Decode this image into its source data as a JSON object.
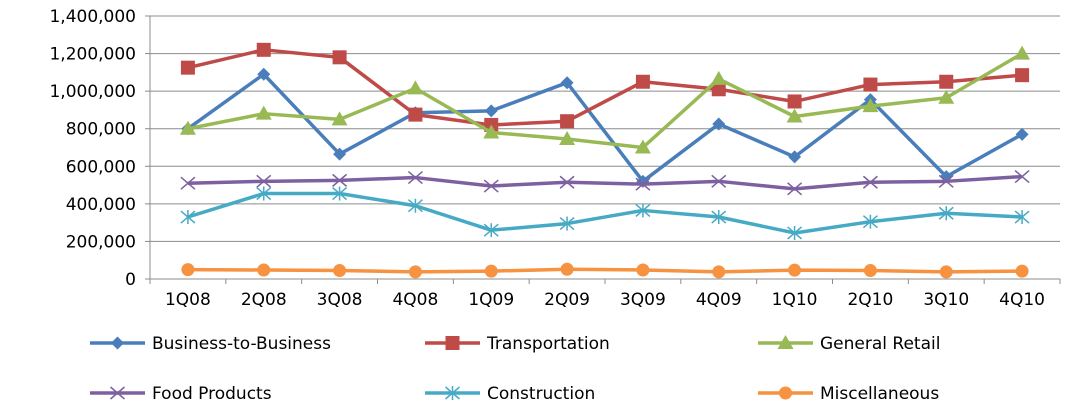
{
  "chart_data": {
    "type": "line",
    "title": "",
    "xlabel": "",
    "ylabel": "",
    "ylim": [
      0,
      1400000
    ],
    "yticks": [
      0,
      200000,
      400000,
      600000,
      800000,
      1000000,
      1200000,
      1400000
    ],
    "ytick_labels": [
      "0",
      "200,000",
      "400,000",
      "600,000",
      "800,000",
      "1,000,000",
      "1,200,000",
      "1,400,000"
    ],
    "categories": [
      "1Q08",
      "2Q08",
      "3Q08",
      "4Q08",
      "1Q09",
      "2Q09",
      "3Q09",
      "4Q09",
      "1Q10",
      "2Q10",
      "3Q10",
      "4Q10"
    ],
    "grid": "horizontal",
    "legend_position": "bottom",
    "series": [
      {
        "name": "Business-to-Business",
        "color": "#4a7ebb",
        "marker": "diamond",
        "values": [
          800000,
          1090000,
          665000,
          885000,
          895000,
          1045000,
          520000,
          825000,
          650000,
          955000,
          545000,
          770000
        ]
      },
      {
        "name": "Transportation",
        "color": "#be4b48",
        "marker": "square",
        "values": [
          1125000,
          1220000,
          1180000,
          875000,
          820000,
          840000,
          1050000,
          1010000,
          945000,
          1035000,
          1050000,
          1085000
        ]
      },
      {
        "name": "General Retail",
        "color": "#98b954",
        "marker": "triangle",
        "values": [
          800000,
          880000,
          850000,
          1015000,
          780000,
          745000,
          700000,
          1065000,
          865000,
          920000,
          965000,
          1200000
        ]
      },
      {
        "name": "Food Products",
        "color": "#7d60a0",
        "marker": "x",
        "values": [
          510000,
          520000,
          525000,
          540000,
          495000,
          515000,
          505000,
          520000,
          480000,
          515000,
          520000,
          545000
        ]
      },
      {
        "name": "Construction",
        "color": "#46aac5",
        "marker": "asterisk",
        "values": [
          330000,
          455000,
          455000,
          390000,
          260000,
          295000,
          365000,
          330000,
          245000,
          305000,
          350000,
          330000
        ]
      },
      {
        "name": "Miscellaneous",
        "color": "#f69240",
        "marker": "circle",
        "values": [
          50000,
          48000,
          45000,
          38000,
          42000,
          52000,
          48000,
          38000,
          47000,
          45000,
          38000,
          42000
        ]
      }
    ]
  }
}
